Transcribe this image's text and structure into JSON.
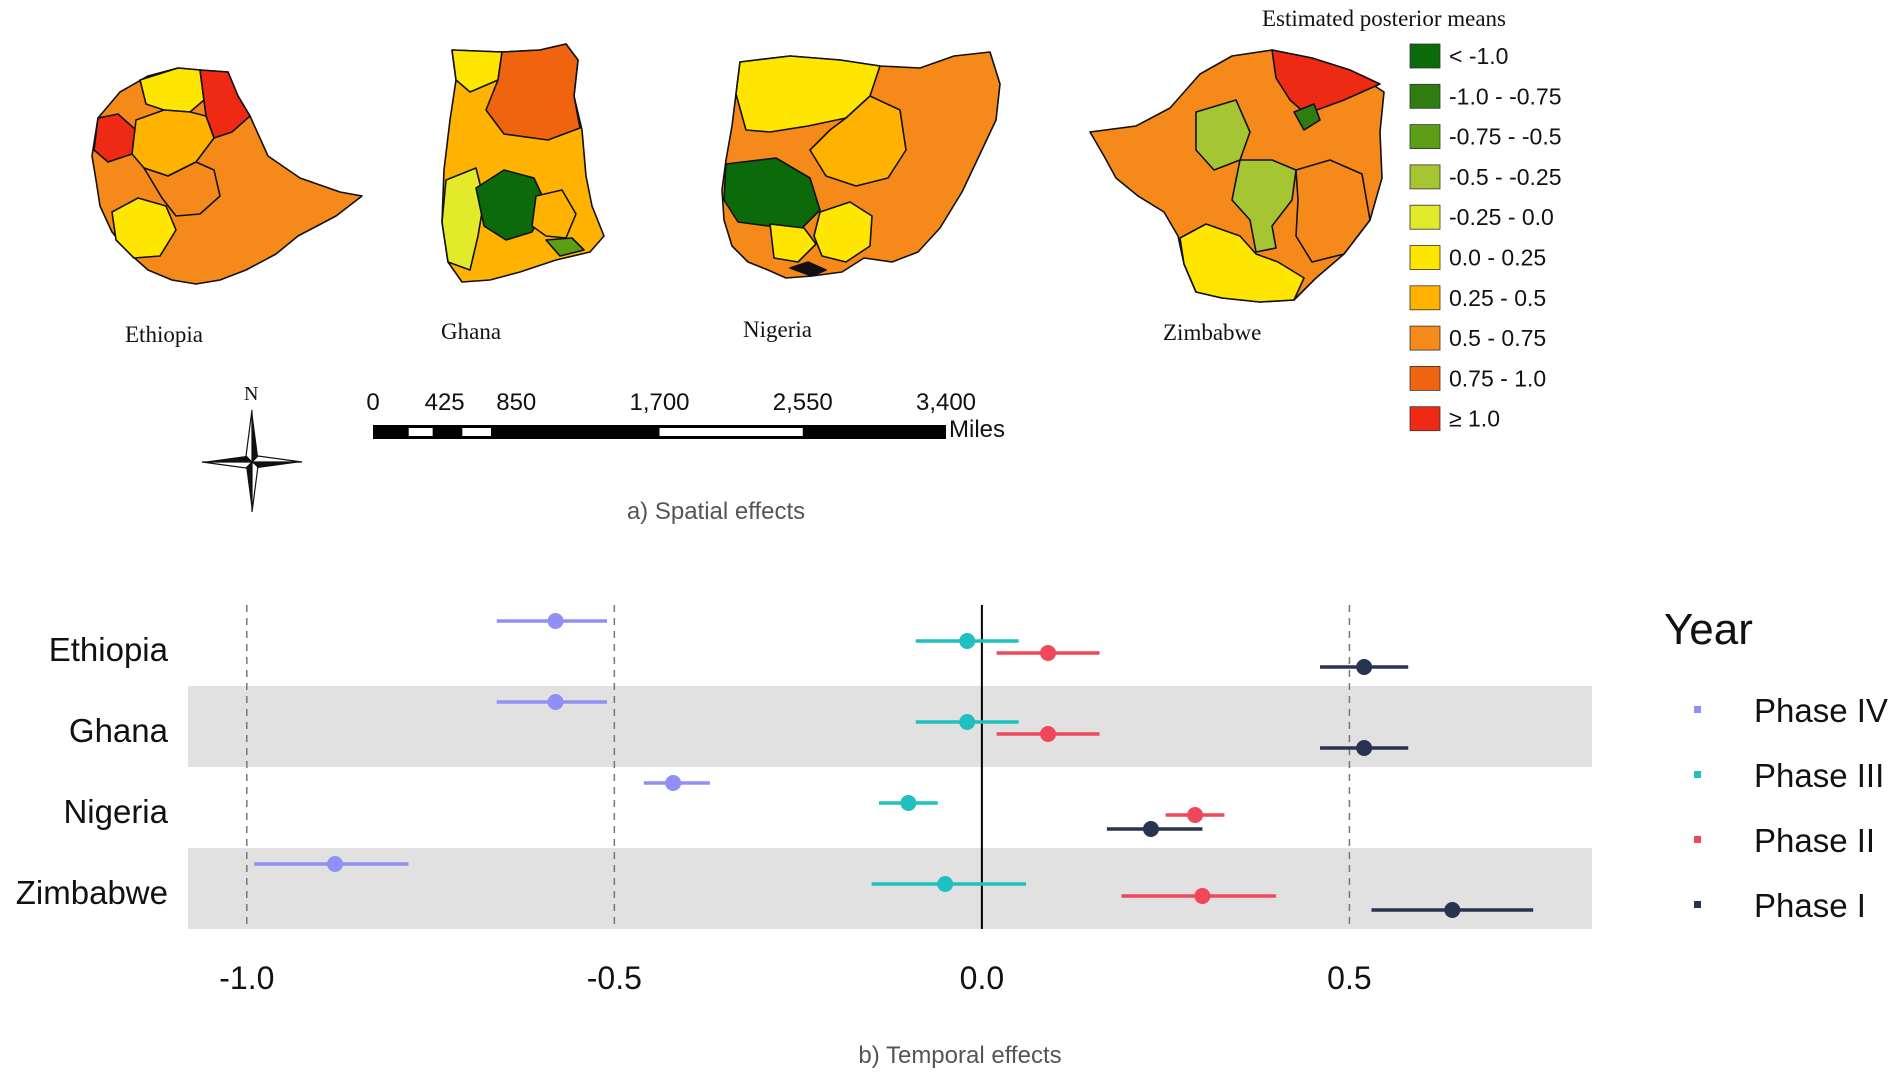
{
  "chart_data": [
    {
      "type": "choropleth-map",
      "caption": "a) Spatial effects",
      "maps": [
        {
          "name": "Ethiopia"
        },
        {
          "name": "Ghana"
        },
        {
          "name": "Nigeria"
        },
        {
          "name": "Zimbabwe"
        }
      ],
      "legend": {
        "title": "Estimated posterior means",
        "classes": [
          {
            "label": "< -1.0",
            "color": "#0b6b0b"
          },
          {
            "label": "-1.0 - -0.75",
            "color": "#2f7d10"
          },
          {
            "label": "-0.75 - -0.5",
            "color": "#5c9e16"
          },
          {
            "label": "-0.5 - -0.25",
            "color": "#a6c532"
          },
          {
            "label": "-0.25 - 0.0",
            "color": "#e3ea2a"
          },
          {
            "label": "0.0 - 0.25",
            "color": "#ffe600"
          },
          {
            "label": "0.25 - 0.5",
            "color": "#ffb300"
          },
          {
            "label": "0.5 - 0.75",
            "color": "#f58a1a"
          },
          {
            "label": "0.75 - 1.0",
            "color": "#f06410"
          },
          {
            "label": "≥ 1.0",
            "color": "#ee2a14"
          }
        ]
      },
      "scalebar": {
        "unit": "Miles",
        "ticks": [
          "0",
          "425",
          "850",
          "1,700",
          "2,550",
          "3,400"
        ],
        "tick_values": [
          0,
          425,
          850,
          1700,
          2550,
          3400
        ]
      },
      "north_arrow_label": "N"
    },
    {
      "type": "dot-interval",
      "caption": "b) Temporal effects",
      "categories": [
        "Ethiopia",
        "Ghana",
        "Nigeria",
        "Zimbabwe"
      ],
      "xlim": [
        -1.08,
        0.83
      ],
      "xticks": [
        -1.0,
        -0.5,
        0.0,
        0.5
      ],
      "xtick_labels": [
        "-1.0",
        "-0.5",
        "0.0",
        "0.5"
      ],
      "legend_title": "Year",
      "series": [
        {
          "name": "Phase IV",
          "color": "#8f8ff5",
          "estimates": [
            -0.58,
            -0.58,
            -0.42,
            -0.88
          ],
          "lower": [
            -0.66,
            -0.66,
            -0.46,
            -0.99
          ],
          "upper": [
            -0.51,
            -0.51,
            -0.37,
            -0.78
          ]
        },
        {
          "name": "Phase III",
          "color": "#1fc0bf",
          "estimates": [
            -0.02,
            -0.02,
            -0.1,
            -0.05
          ],
          "lower": [
            -0.09,
            -0.09,
            -0.14,
            -0.15
          ],
          "upper": [
            0.05,
            0.05,
            -0.06,
            0.06
          ]
        },
        {
          "name": "Phase II",
          "color": "#f0475a",
          "estimates": [
            0.09,
            0.09,
            0.29,
            0.3
          ],
          "lower": [
            0.02,
            0.02,
            0.25,
            0.19
          ],
          "upper": [
            0.16,
            0.16,
            0.33,
            0.4
          ]
        },
        {
          "name": "Phase I",
          "color": "#28344f",
          "estimates": [
            0.52,
            0.52,
            0.23,
            0.64
          ],
          "lower": [
            0.46,
            0.46,
            0.17,
            0.53
          ],
          "upper": [
            0.58,
            0.58,
            0.3,
            0.75
          ]
        }
      ]
    }
  ]
}
